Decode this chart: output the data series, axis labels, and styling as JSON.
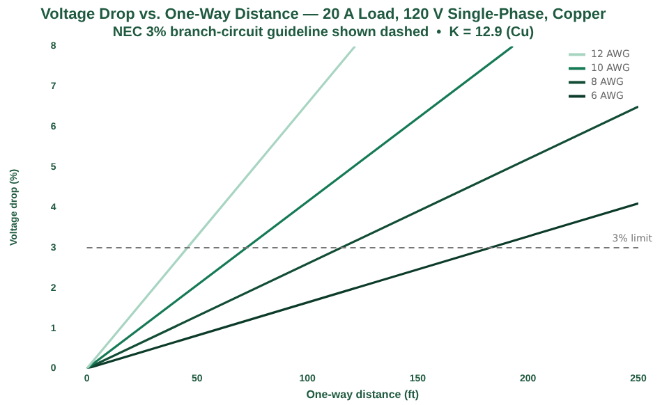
{
  "chart_data": {
    "type": "line",
    "title": "Voltage Drop vs. One-Way Distance — 20 A Load, 120 V Single-Phase, Copper",
    "subtitle": "NEC 3% branch-circuit guideline shown dashed  •  K = 12.9 (Cu)",
    "xlabel": "One-way distance (ft)",
    "ylabel": "Voltage drop (%)",
    "series": [
      {
        "name": "12 AWG",
        "color": "#a8d5c2",
        "x": [
          0,
          121.6
        ],
        "values": [
          0,
          8
        ]
      },
      {
        "name": "10 AWG",
        "color": "#157a55",
        "x": [
          0,
          193.1
        ],
        "values": [
          0,
          8
        ]
      },
      {
        "name": "8 AWG",
        "color": "#124d36",
        "x": [
          0,
          250
        ],
        "values": [
          0,
          6.5
        ]
      },
      {
        "name": "6 AWG",
        "color": "#0c3b29",
        "x": [
          0,
          250
        ],
        "values": [
          0,
          4.1
        ]
      }
    ],
    "xlim": [
      0,
      250
    ],
    "xticks": [
      0,
      50,
      100,
      150,
      200,
      250
    ],
    "ylim": [
      0,
      8
    ],
    "yticks": [
      0,
      1,
      2,
      3,
      4,
      5,
      6,
      7,
      8
    ],
    "ref_lines": [
      {
        "axis": "y",
        "value": 3,
        "label": "3% limit",
        "color": "#777777",
        "line_style": "dashed"
      }
    ],
    "grid": false,
    "legend": "top right",
    "marker": "none",
    "line_style": "solid"
  }
}
